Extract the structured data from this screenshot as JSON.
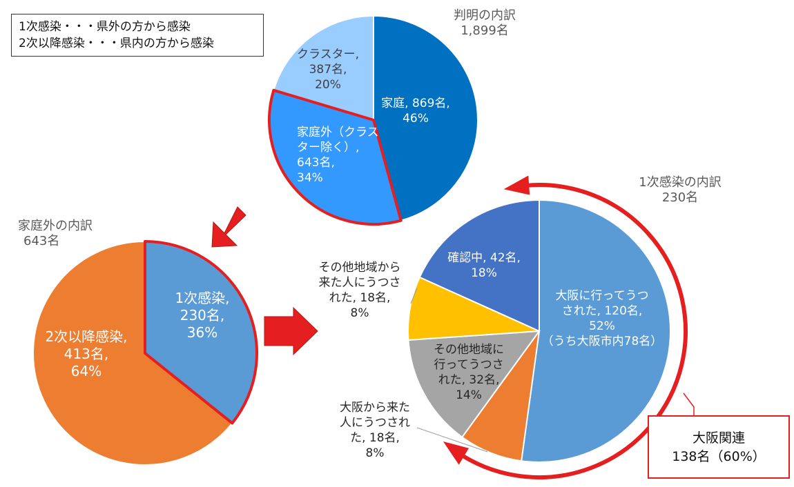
{
  "legend": {
    "line1": "1次感染・・・県外の方から感染",
    "line2": "2次以降感染・・・県内の方から感染"
  },
  "titles": {
    "known_title": "判明の内訳",
    "known_total": "1,899名",
    "outside_title": "家庭外の内訳",
    "outside_total": "643名",
    "primary_title": "1次感染の内訳",
    "primary_total": "230名"
  },
  "callout": {
    "line1": "大阪関連",
    "line2": "138名（60%）"
  },
  "colors": {
    "dark_blue": "#0070c0",
    "mid_blue": "#3399ff",
    "light_blue": "#99ccff",
    "orange": "#ed7d31",
    "steel_blue": "#5b9bd5",
    "indigo": "#4472c4",
    "yellow": "#ffc000",
    "gray": "#a5a5a5",
    "red": "#e51f1f"
  },
  "chart_data": [
    {
      "type": "pie",
      "title": "判明の内訳",
      "total": "1,899名",
      "slices": [
        {
          "name": "家庭",
          "value": 869,
          "percent": 46,
          "color": "#0070c0",
          "label": [
            "家庭, 869名,",
            "46%"
          ]
        },
        {
          "name": "家庭外（クラスター除く）",
          "value": 643,
          "percent": 34,
          "color": "#3399ff",
          "highlight": true,
          "label": [
            "家庭外（クラス",
            "ター除く）,",
            "643名,",
            "34%"
          ]
        },
        {
          "name": "クラスター",
          "value": 387,
          "percent": 20,
          "color": "#99ccff",
          "label": [
            "クラスター,",
            "387名,",
            "20%"
          ]
        }
      ]
    },
    {
      "type": "pie",
      "title": "家庭外の内訳",
      "total": "643名",
      "slices": [
        {
          "name": "1次感染",
          "value": 230,
          "percent": 36,
          "color": "#5b9bd5",
          "highlight": true,
          "label": [
            "1次感染,",
            "230名,",
            "36%"
          ]
        },
        {
          "name": "2次以降感染",
          "value": 413,
          "percent": 64,
          "color": "#ed7d31",
          "label": [
            "2次以降感染,",
            "413名,",
            "64%"
          ]
        }
      ]
    },
    {
      "type": "pie",
      "title": "1次感染の内訳",
      "total": "230名",
      "slices": [
        {
          "name": "大阪に行ってうつされた",
          "value": 120,
          "percent": 52,
          "color": "#5b9bd5",
          "label": [
            "大阪に行ってうつ",
            "された, 120名,",
            "52%",
            "",
            "（うち大阪市内78名）"
          ]
        },
        {
          "name": "大阪から来た人にうつされた",
          "value": 18,
          "percent": 8,
          "color": "#ed7d31",
          "label": [
            "大阪から来た",
            "人にうつされ",
            "た, 18名,",
            "8%"
          ]
        },
        {
          "name": "その他地域に行ってうつされた",
          "value": 32,
          "percent": 14,
          "color": "#a5a5a5",
          "label": [
            "その他地域に",
            "行ってうつさ",
            "れた, 32名,",
            "14%"
          ]
        },
        {
          "name": "その他地域から来た人にうつされた",
          "value": 18,
          "percent": 8,
          "color": "#ffc000",
          "label": [
            "その他地域から",
            "来た人にうつさ",
            "れた, 18名,",
            "8%"
          ]
        },
        {
          "name": "確認中",
          "value": 42,
          "percent": 18,
          "color": "#4472c4",
          "label": [
            "確認中, 42名,",
            "18%"
          ]
        }
      ]
    }
  ]
}
